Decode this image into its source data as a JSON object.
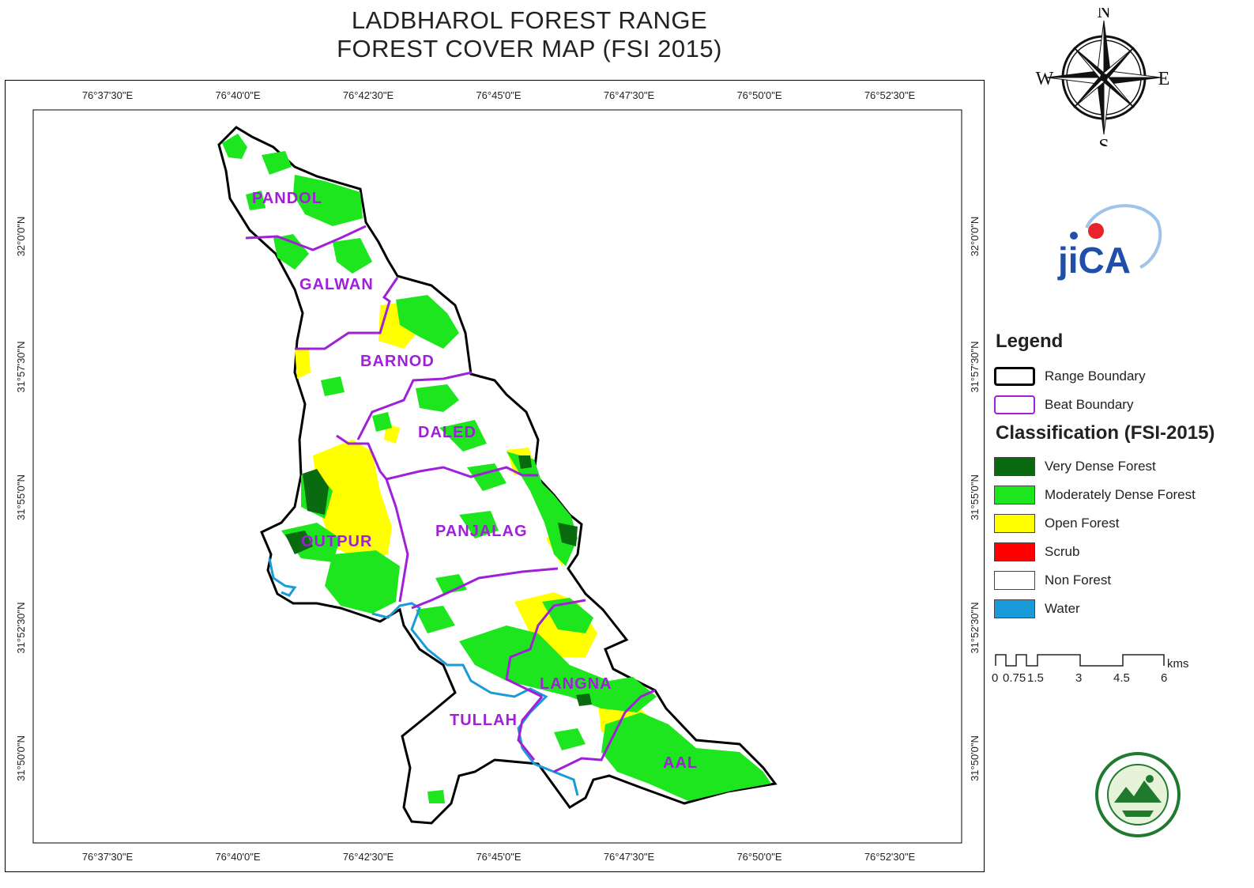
{
  "title": {
    "line1": "LADBHAROL FOREST RANGE",
    "line2": "FOREST COVER MAP (FSI 2015)"
  },
  "map": {
    "longitude_labels": [
      "76°37'30\"E",
      "76°40'0\"E",
      "76°42'30\"E",
      "76°45'0\"E",
      "76°47'30\"E",
      "76°50'0\"E",
      "76°52'30\"E"
    ],
    "latitude_labels": [
      "32°0'0\"N",
      "31°57'30\"N",
      "31°55'0\"N",
      "31°52'30\"N",
      "31°50'0\"N"
    ],
    "beats": [
      "PANDOL",
      "GALWAN",
      "BARNOD",
      "DALED",
      "PANJALAG",
      "OUTPUR",
      "LANGNA",
      "TULLAH",
      "AAL"
    ]
  },
  "compass": {
    "n": "N",
    "s": "S",
    "e": "E",
    "w": "W",
    "icon": "compass-rose-icon"
  },
  "logo": {
    "text": "jiCA",
    "icon": "jica-logo-icon"
  },
  "legend": {
    "title": "Legend",
    "boundaries": [
      {
        "label": "Range Boundary",
        "color": "#000000"
      },
      {
        "label": "Beat Boundary",
        "color": "#a020d8"
      }
    ],
    "classification_title": "Classification (FSI-2015)",
    "classes": [
      {
        "label": "Very Dense Forest",
        "color": "#0a6a10"
      },
      {
        "label": "Moderately Dense Forest",
        "color": "#1ee61e"
      },
      {
        "label": "Open Forest",
        "color": "#ffff00"
      },
      {
        "label": "Scrub",
        "color": "#ff0000"
      },
      {
        "label": "Non Forest",
        "color": "#ffffff"
      },
      {
        "label": "Water",
        "color": "#1a9ad8"
      }
    ]
  },
  "scale_bar": {
    "labels": [
      "0",
      "0.75",
      "1.5",
      "3",
      "4.5",
      "6"
    ],
    "unit": "kms"
  },
  "seal": {
    "icon": "forest-department-seal-icon"
  }
}
